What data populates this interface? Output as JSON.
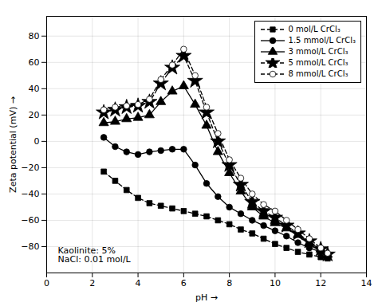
{
  "chart_data": {
    "type": "line",
    "xlabel": "pH",
    "ylabel": "Zeta potential (mV)",
    "annotation": "Kaolinite: 5%\nNaCl: 0.01 mol/L",
    "x": [
      2.5,
      3.0,
      3.5,
      4.0,
      4.5,
      5.0,
      5.5,
      6.0,
      6.5,
      7.0,
      7.5,
      8.0,
      8.5,
      9.0,
      9.5,
      10.0,
      10.5,
      11.0,
      11.5,
      12.0,
      12.3
    ],
    "series": [
      {
        "name": "0 mol/L CrCl₃",
        "color": "black",
        "marker": "square",
        "line_style": "dashed",
        "values": [
          -23,
          -30,
          -37,
          -43,
          -47,
          -49,
          -51,
          -53,
          -55,
          -57,
          -60,
          -63,
          -67,
          -70,
          -74,
          -78,
          -81,
          -84,
          -86,
          -88,
          -89
        ]
      },
      {
        "name": "1.5 mmol/L CrCl₃",
        "color": "black",
        "marker": "circle",
        "line_style": "solid",
        "values": [
          3,
          -4,
          -8,
          -10,
          -8,
          -7,
          -6,
          -6,
          -18,
          -32,
          -42,
          -50,
          -55,
          -60,
          -64,
          -68,
          -72,
          -77,
          -81,
          -84,
          -86
        ]
      },
      {
        "name": "3 mmol/L CrCl₃",
        "color": "black",
        "marker": "triangle",
        "line_style": "solid",
        "values": [
          14,
          15,
          17,
          18,
          20,
          30,
          38,
          42,
          28,
          12,
          -8,
          -24,
          -38,
          -50,
          -57,
          -62,
          -66,
          -71,
          -77,
          -82,
          -86
        ]
      },
      {
        "name": "5 mmol/L CrCl₃",
        "color": "black",
        "marker": "star",
        "line_style": "dashed",
        "values": [
          22,
          24,
          26,
          27,
          30,
          44,
          56,
          65,
          46,
          22,
          0,
          -18,
          -33,
          -46,
          -53,
          -58,
          -64,
          -70,
          -76,
          -82,
          -86
        ]
      },
      {
        "name": "8 mmol/L CrCl₃",
        "color": "black",
        "marker": "open-circle",
        "line_style": "dashed",
        "values": [
          24,
          26,
          27,
          28,
          32,
          47,
          58,
          70,
          50,
          26,
          6,
          -14,
          -28,
          -40,
          -48,
          -53,
          -60,
          -67,
          -74,
          -81,
          -85
        ]
      }
    ],
    "xlim": [
      0,
      14
    ],
    "ylim": [
      -100,
      95
    ],
    "xticks": [
      0,
      2,
      4,
      6,
      8,
      10,
      12,
      14
    ],
    "yticks": [
      -80,
      -60,
      -40,
      -20,
      0,
      20,
      40,
      60,
      80
    ],
    "grid": true,
    "legend": "upper right"
  }
}
